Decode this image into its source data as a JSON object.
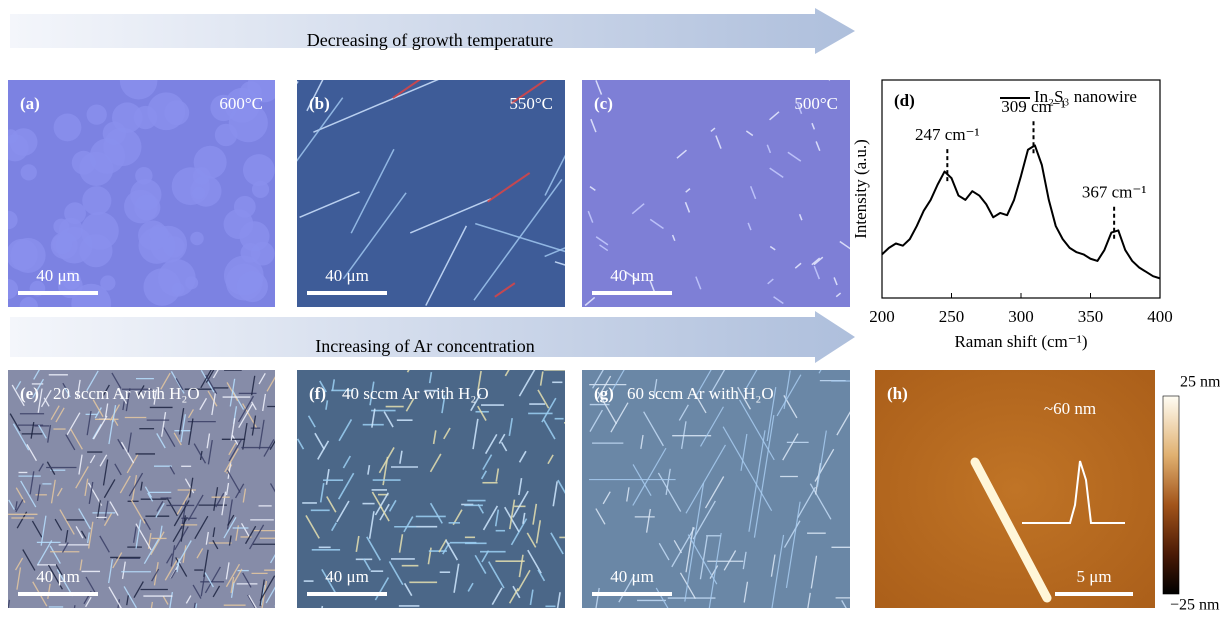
{
  "arrows": [
    {
      "label": "Decreasing of growth temperature"
    },
    {
      "label": "Increasing of Ar concentration"
    }
  ],
  "panels": [
    {
      "label": "(a)",
      "note": "600°C",
      "scale_bar": "40 μm"
    },
    {
      "label": "(b)",
      "note": "550°C",
      "scale_bar": "40 μm"
    },
    {
      "label": "(c)",
      "note": "500°C",
      "scale_bar": "40 μm"
    },
    {
      "label": "(e)",
      "note": "20 sccm Ar with H₂O",
      "scale_bar": "40 μm"
    },
    {
      "label": "(f)",
      "note": "40 sccm Ar with H₂O",
      "scale_bar": "40 μm"
    },
    {
      "label": "(g)",
      "note": "60 sccm Ar with H₂O",
      "scale_bar": "40 μm"
    },
    {
      "label": "(h)",
      "note": "~60 nm",
      "scale_bar": "5 μm",
      "colorbar": [
        "25 nm",
        "−25 nm"
      ]
    }
  ],
  "chart_data": {
    "type": "line",
    "panel_label": "(d)",
    "xlabel": "Raman shift (cm⁻¹)",
    "ylabel": "Intensity (a.u.)",
    "x": [
      200,
      205,
      210,
      215,
      220,
      225,
      230,
      235,
      240,
      245,
      250,
      255,
      260,
      265,
      270,
      275,
      280,
      285,
      290,
      295,
      300,
      305,
      310,
      315,
      320,
      325,
      330,
      335,
      340,
      345,
      350,
      355,
      360,
      365,
      370,
      375,
      380,
      385,
      390,
      395,
      400
    ],
    "series": [
      {
        "name": "In₂S₃ nanowire",
        "color": "#000000",
        "values": [
          20,
          23,
          25,
          24,
          27,
          33,
          40,
          45,
          52,
          58,
          55,
          47,
          45,
          49,
          47,
          43,
          37,
          39,
          38,
          45,
          56,
          68,
          70,
          61,
          45,
          33,
          27,
          23,
          21,
          20,
          18,
          17,
          22,
          30,
          31,
          22,
          17,
          14,
          12,
          10,
          9
        ]
      }
    ],
    "xlim": [
      200,
      400
    ],
    "xticks": [
      200,
      250,
      300,
      350,
      400
    ],
    "ylim": [
      0,
      100
    ],
    "annotations": [
      {
        "text": "247 cm⁻¹",
        "x": 247
      },
      {
        "text": "309 cm⁻¹",
        "x": 309
      },
      {
        "text": "367 cm⁻¹",
        "x": 367
      }
    ]
  }
}
